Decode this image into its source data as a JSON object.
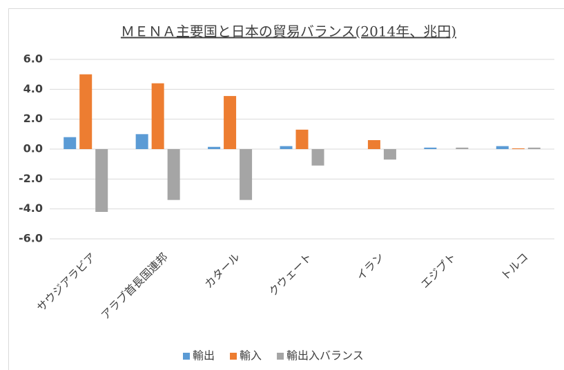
{
  "chart_data": {
    "type": "bar",
    "title": "ＭＥＮＡ主要国と日本の貿易バランス(2014年、兆円)",
    "categories": [
      "サウジアラビア",
      "アラブ首長国連邦",
      "カタール",
      "クウェート",
      "イラン",
      "エジプト",
      "トルコ"
    ],
    "series": [
      {
        "name": "輸出",
        "color": "#5b9bd5",
        "values": [
          0.8,
          1.0,
          0.15,
          0.2,
          0,
          0.1,
          0.2
        ]
      },
      {
        "name": "輸入",
        "color": "#ed7d31",
        "values": [
          5.0,
          4.4,
          3.55,
          1.3,
          0.6,
          0,
          0.05
        ]
      },
      {
        "name": "輸出入バランス",
        "color": "#a5a5a5",
        "values": [
          -4.2,
          -3.4,
          -3.4,
          -1.1,
          -0.7,
          0.1,
          0.1
        ]
      }
    ],
    "ylim": [
      -6,
      6
    ],
    "yticks": [
      {
        "value": 6,
        "label": "6.0"
      },
      {
        "value": 4,
        "label": "4.0"
      },
      {
        "value": 2,
        "label": "2.0"
      },
      {
        "value": 0,
        "label": "0.0"
      },
      {
        "value": -2,
        "label": "-2.0"
      },
      {
        "value": -4,
        "label": "-4.0"
      },
      {
        "value": -6,
        "label": "-6.0"
      }
    ],
    "grid": true,
    "legend": "bottom"
  }
}
